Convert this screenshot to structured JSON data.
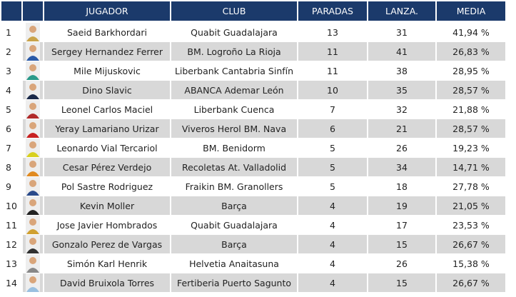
{
  "table": {
    "header": [
      "JUGADOR",
      "CLUB",
      "PARADAS",
      "LANZA.",
      "MEDIA"
    ],
    "rows": [
      [
        "1",
        "Saeid Barkhordari",
        "Quabit Guadalajara",
        "13",
        "31",
        "41,94 %"
      ],
      [
        "2",
        "Sergey Hernandez Ferrer",
        "BM. Logroño La Rioja",
        "11",
        "41",
        "26,83 %"
      ],
      [
        "3",
        "Mile Mijuskovic",
        "Liberbank Cantabria Sinfín",
        "11",
        "38",
        "28,95 %"
      ],
      [
        "4",
        "Dino Slavic",
        "ABANCA Ademar León",
        "10",
        "35",
        "28,57 %"
      ],
      [
        "5",
        "Leonel Carlos Maciel",
        "Liberbank Cuenca",
        "7",
        "32",
        "21,88 %"
      ],
      [
        "6",
        "Yeray Lamariano Urizar",
        "Viveros Herol BM. Nava",
        "6",
        "21",
        "28,57 %"
      ],
      [
        "7",
        "Leonardo Vial Tercariol",
        "BM. Benidorm",
        "5",
        "26",
        "19,23 %"
      ],
      [
        "8",
        "Cesar Pérez Verdejo",
        "Recoletas At. Valladolid",
        "5",
        "34",
        "14,71 %"
      ],
      [
        "9",
        "Pol Sastre Rodriguez",
        "Fraikin BM. Granollers",
        "5",
        "18",
        "27,78 %"
      ],
      [
        "10",
        "Kevin Moller",
        "Barça",
        "4",
        "19",
        "21,05 %"
      ],
      [
        "11",
        "Jose Javier Hombrados",
        "Quabit Guadalajara",
        "4",
        "17",
        "23,53 %"
      ],
      [
        "12",
        "Gonzalo Perez de Vargas",
        "Barça",
        "4",
        "15",
        "26,67 %"
      ],
      [
        "13",
        "Simón Karl Henrik",
        "Helvetia Anaitasuna",
        "4",
        "26",
        "15,38 %"
      ],
      [
        "14",
        "David Bruixola Torres",
        "Fertiberia Puerto Sagunto",
        "4",
        "15",
        "26,67 %"
      ]
    ]
  }
}
